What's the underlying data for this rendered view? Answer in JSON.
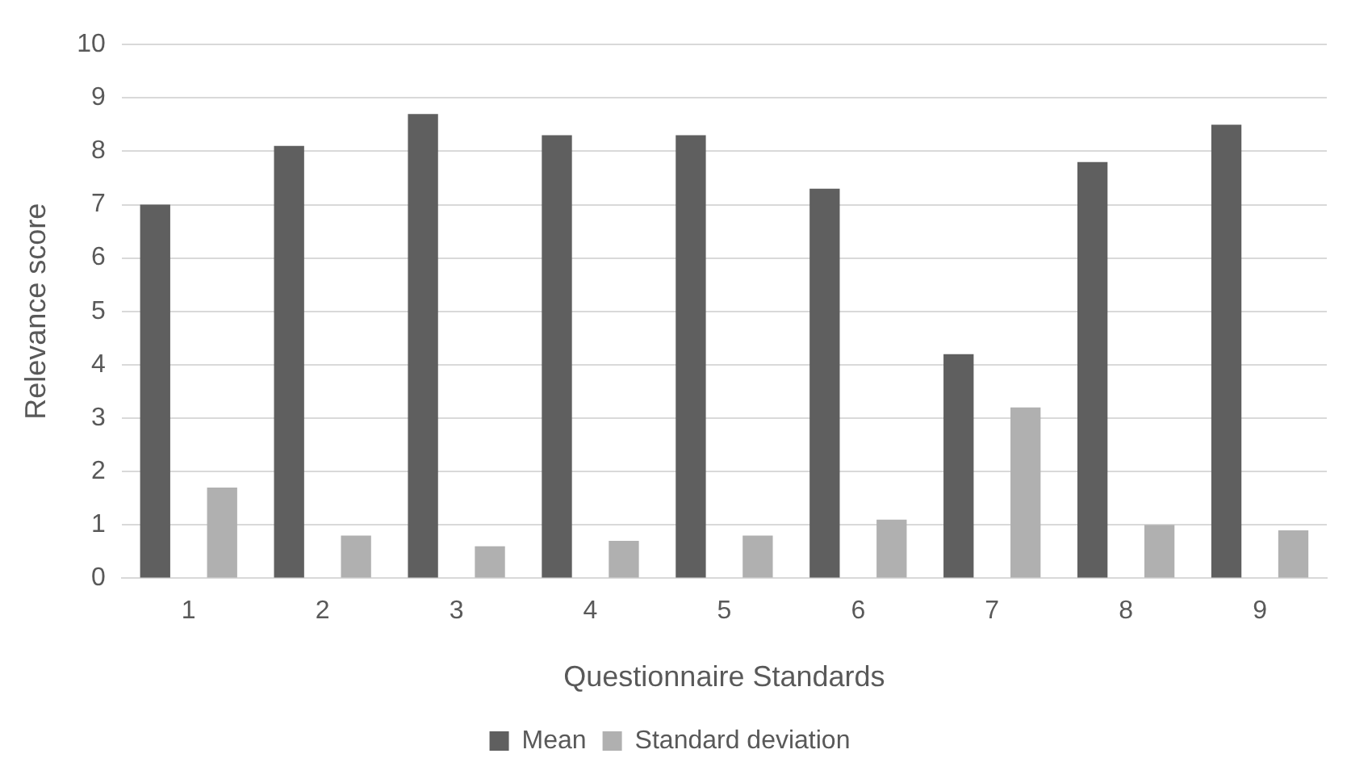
{
  "chart_data": {
    "type": "bar",
    "xlabel": "Questionnaire Standards",
    "ylabel": "Relevance score",
    "categories": [
      "1",
      "2",
      "3",
      "4",
      "5",
      "6",
      "7",
      "8",
      "9"
    ],
    "series": [
      {
        "name": "Mean",
        "color": "#5f5f5f",
        "values": [
          7.0,
          8.1,
          8.7,
          8.3,
          8.3,
          7.3,
          4.2,
          7.8,
          8.5
        ]
      },
      {
        "name": "Standard deviation",
        "color": "#b0b0b0",
        "values": [
          1.7,
          0.8,
          0.6,
          0.7,
          0.8,
          1.1,
          3.2,
          1.0,
          0.9
        ]
      }
    ],
    "ylim": [
      0,
      10
    ],
    "yticks": [
      0,
      1,
      2,
      3,
      4,
      5,
      6,
      7,
      8,
      9,
      10
    ],
    "grid": "y",
    "legend": "bottom"
  }
}
